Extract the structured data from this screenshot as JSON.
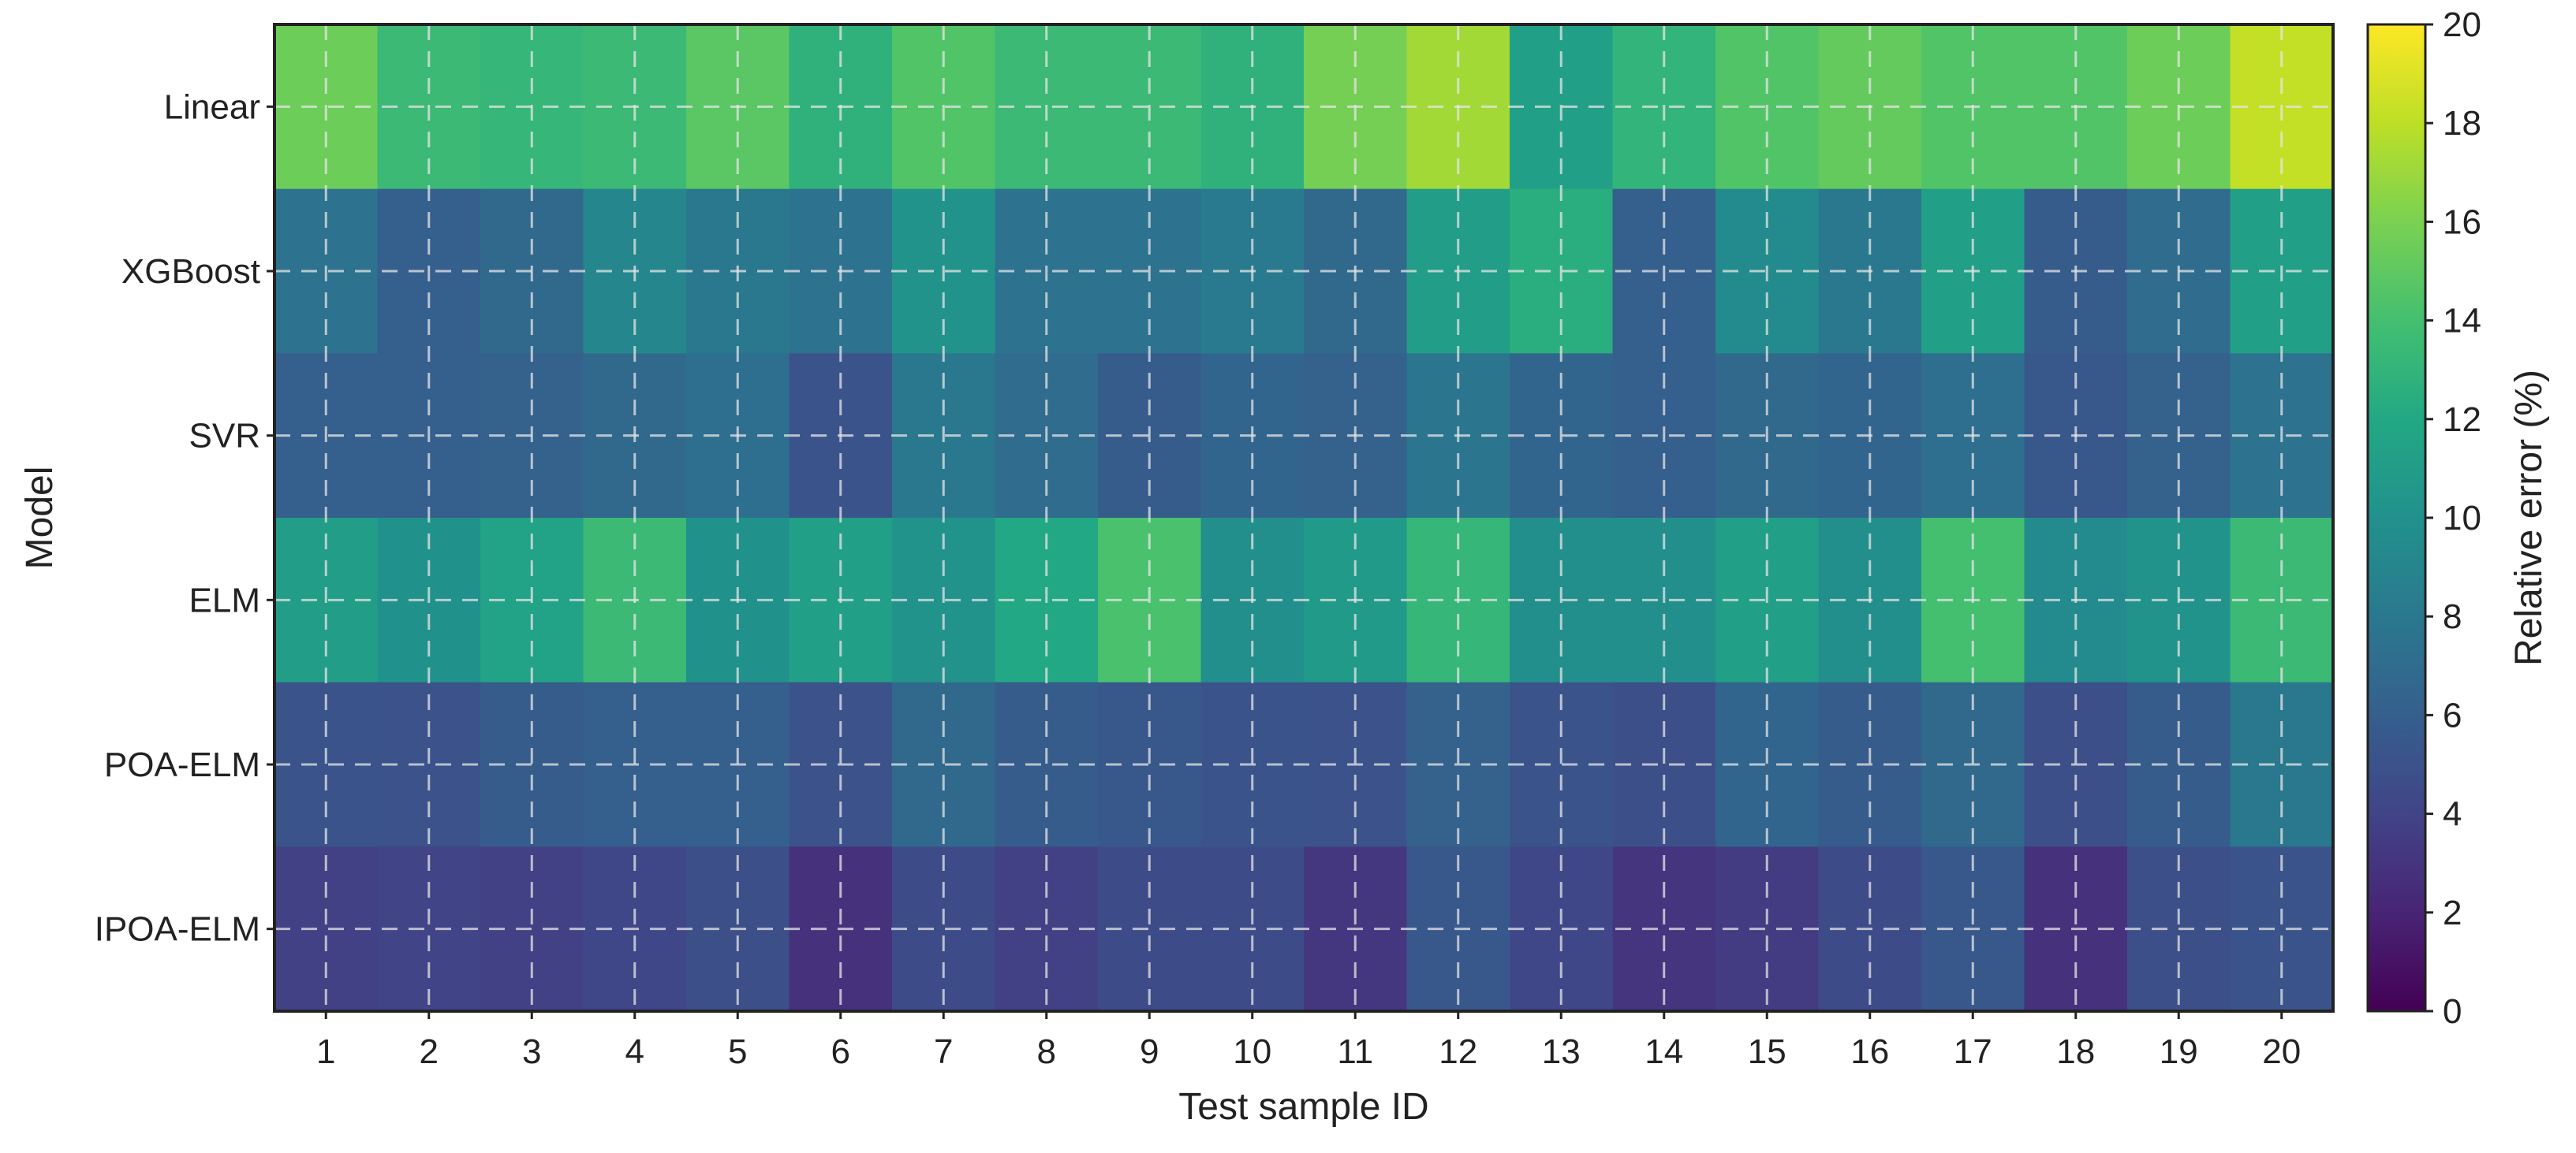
{
  "chart_data": {
    "type": "heatmap",
    "title": "",
    "xlabel": "Test sample ID",
    "ylabel": "Model",
    "colorbar_label": "Relative error (%)",
    "colormap": "viridis",
    "clim": [
      0,
      20
    ],
    "colorbar_ticks": [
      "0",
      "2",
      "4",
      "6",
      "8",
      "10",
      "12",
      "14",
      "16",
      "18",
      "20"
    ],
    "x_categories": [
      "1",
      "2",
      "3",
      "4",
      "5",
      "6",
      "7",
      "8",
      "9",
      "10",
      "11",
      "12",
      "13",
      "14",
      "15",
      "16",
      "17",
      "18",
      "19",
      "20"
    ],
    "y_categories": [
      "Linear",
      "XGBoost",
      "SVR",
      "ELM",
      "POA-ELM",
      "IPOA-ELM"
    ],
    "grid": "dashed, light gray, on",
    "values": [
      [
        15.5,
        13.5,
        13.2,
        13.5,
        14.8,
        12.8,
        14.5,
        13.5,
        13.5,
        12.8,
        15.8,
        17.2,
        11.2,
        13.0,
        14.5,
        15.2,
        14.5,
        14.5,
        15.5,
        18.2
      ],
      [
        7.5,
        6.0,
        6.8,
        9.2,
        8.0,
        7.5,
        10.2,
        7.5,
        7.5,
        8.2,
        6.8,
        11.0,
        12.5,
        6.0,
        9.5,
        8.0,
        11.2,
        5.8,
        7.0,
        11.2
      ],
      [
        6.0,
        6.0,
        6.2,
        6.8,
        7.2,
        5.2,
        8.0,
        7.0,
        5.8,
        6.5,
        6.2,
        7.8,
        6.5,
        6.0,
        6.8,
        6.5,
        7.2,
        5.5,
        6.2,
        7.5
      ],
      [
        11.0,
        10.0,
        11.5,
        13.5,
        10.0,
        11.2,
        10.2,
        12.0,
        14.2,
        9.8,
        10.8,
        13.2,
        9.8,
        9.8,
        11.2,
        9.8,
        14.0,
        9.5,
        10.2,
        13.5
      ],
      [
        5.2,
        5.0,
        5.8,
        6.0,
        6.0,
        5.0,
        6.8,
        5.8,
        5.5,
        5.2,
        5.0,
        6.2,
        5.2,
        4.8,
        6.5,
        5.8,
        6.8,
        4.8,
        5.8,
        8.0
      ],
      [
        3.8,
        4.0,
        3.8,
        4.2,
        4.8,
        2.8,
        4.5,
        3.8,
        4.5,
        4.5,
        3.2,
        5.5,
        4.2,
        3.0,
        3.5,
        4.5,
        5.5,
        2.8,
        4.8,
        5.2
      ]
    ]
  }
}
